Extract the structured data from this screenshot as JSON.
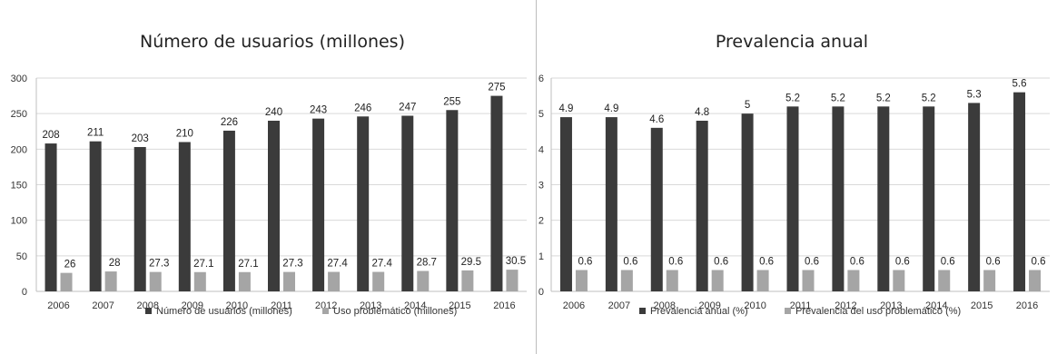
{
  "colors": {
    "series1": "#3b3b3b",
    "series2": "#a5a5a5",
    "grid": "#d9d9d9",
    "axis": "#bfbfbf"
  },
  "chart_data": [
    {
      "type": "bar",
      "title": "Número de usuarios (millones)",
      "categories": [
        "2006",
        "2007",
        "2008",
        "2009",
        "2010",
        "2011",
        "2012",
        "2013",
        "2014",
        "2015",
        "2016"
      ],
      "series": [
        {
          "name": "Número de usuarios (millones)",
          "values": [
            208,
            211,
            203,
            210,
            226,
            240,
            243,
            246,
            247,
            255,
            275
          ],
          "labels": [
            "208",
            "211",
            "203",
            "210",
            "226",
            "240",
            "243",
            "246",
            "247",
            "255",
            "275"
          ]
        },
        {
          "name": "Uso problemático (millones)",
          "values": [
            26,
            28,
            27.3,
            27.1,
            27.1,
            27.3,
            27.4,
            27.4,
            28.7,
            29.5,
            30.5
          ],
          "labels": [
            "26",
            "28",
            "27.3",
            "27.1",
            "27.1",
            "27.3",
            "27.4",
            "27.4",
            "28.7",
            "29.5",
            "30.5"
          ]
        }
      ],
      "ylim": [
        0,
        300
      ],
      "yticks": [
        "0",
        "50",
        "100",
        "150",
        "200",
        "250",
        "300"
      ],
      "grid": true,
      "legend": "bottom"
    },
    {
      "type": "bar",
      "title": "Prevalencia anual",
      "categories": [
        "2006",
        "2007",
        "2008",
        "2009",
        "2010",
        "2011",
        "2012",
        "2013",
        "2014",
        "2015",
        "2016"
      ],
      "series": [
        {
          "name": "Prevalencia anual (%)",
          "values": [
            4.9,
            4.9,
            4.6,
            4.8,
            5,
            5.2,
            5.2,
            5.2,
            5.2,
            5.3,
            5.6
          ],
          "labels": [
            "4.9",
            "4.9",
            "4.6",
            "4.8",
            "5",
            "5.2",
            "5.2",
            "5.2",
            "5.2",
            "5.3",
            "5.6"
          ]
        },
        {
          "name": "Prevalencia del uso problemático (%)",
          "values": [
            0.6,
            0.6,
            0.6,
            0.6,
            0.6,
            0.6,
            0.6,
            0.6,
            0.6,
            0.6,
            0.6
          ],
          "labels": [
            "0.6",
            "0.6",
            "0.6",
            "0.6",
            "0.6",
            "0.6",
            "0.6",
            "0.6",
            "0.6",
            "0.6",
            "0.6"
          ]
        }
      ],
      "ylim": [
        0,
        6
      ],
      "yticks": [
        "0",
        "1",
        "2",
        "3",
        "4",
        "5",
        "6"
      ],
      "grid": true,
      "legend": "bottom"
    }
  ]
}
